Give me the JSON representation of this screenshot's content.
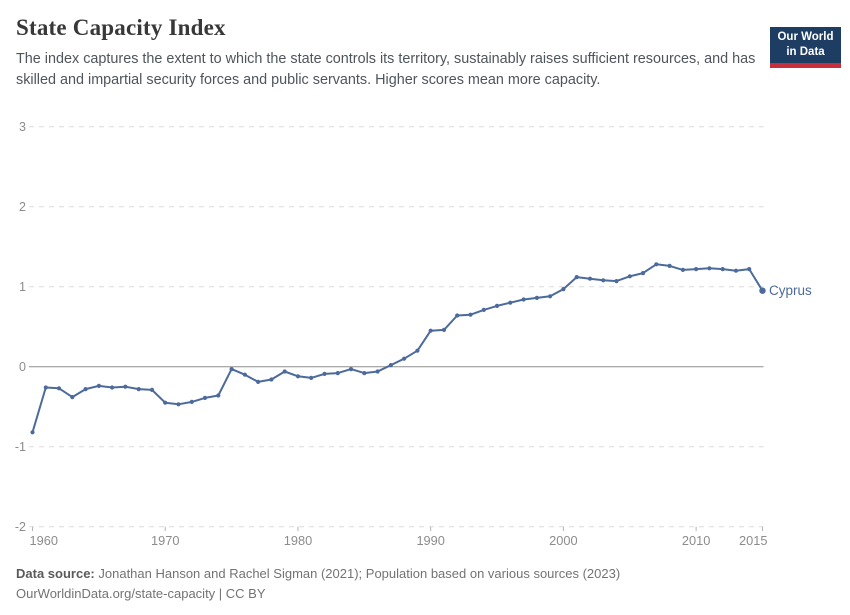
{
  "header": {
    "title": "State Capacity Index",
    "subtitle": "The index captures the extent to which the state controls its territory, sustainably raises sufficient resources, and has skilled and impartial security forces and public servants. Higher scores mean more capacity.",
    "logo_line1": "Our World",
    "logo_line2": "in Data"
  },
  "colors": {
    "series_line": "#4c6a9c",
    "logo_background": "#1d3d63",
    "logo_red_bar": "#c72f3d",
    "gridline": "#dcdcdc",
    "zero_line": "#8f8f8f",
    "axis_label": "#8c8c8c"
  },
  "chart_data": {
    "type": "line",
    "title": "State Capacity Index",
    "xlabel": "",
    "ylabel": "",
    "xlim": [
      1960,
      2015
    ],
    "ylim": [
      -2,
      3
    ],
    "x_ticks": [
      1960,
      1970,
      1980,
      1990,
      2000,
      2010,
      2015
    ],
    "y_ticks": [
      3,
      2,
      1,
      0,
      -1,
      -2
    ],
    "grid": "horizontal dashed gridlines, solid line at 0",
    "legend": "label at end of line",
    "years": [
      1960,
      1961,
      1962,
      1963,
      1964,
      1965,
      1966,
      1967,
      1968,
      1969,
      1970,
      1971,
      1972,
      1973,
      1974,
      1975,
      1976,
      1977,
      1978,
      1979,
      1980,
      1981,
      1982,
      1983,
      1984,
      1985,
      1986,
      1987,
      1988,
      1989,
      1990,
      1991,
      1992,
      1993,
      1994,
      1995,
      1996,
      1997,
      1998,
      1999,
      2000,
      2001,
      2002,
      2003,
      2004,
      2005,
      2006,
      2007,
      2008,
      2009,
      2010,
      2011,
      2012,
      2013,
      2014,
      2015
    ],
    "series": [
      {
        "name": "Cyprus",
        "color": "#4c6a9c",
        "values": [
          -0.82,
          -0.26,
          -0.27,
          -0.38,
          -0.28,
          -0.24,
          -0.26,
          -0.25,
          -0.28,
          -0.29,
          -0.45,
          -0.47,
          -0.44,
          -0.39,
          -0.36,
          -0.03,
          -0.1,
          -0.19,
          -0.16,
          -0.06,
          -0.12,
          -0.14,
          -0.09,
          -0.08,
          -0.03,
          -0.08,
          -0.06,
          0.02,
          0.1,
          0.2,
          0.45,
          0.46,
          0.64,
          0.65,
          0.71,
          0.76,
          0.8,
          0.84,
          0.86,
          0.88,
          0.97,
          1.12,
          1.1,
          1.08,
          1.07,
          1.13,
          1.17,
          1.28,
          1.26,
          1.21,
          1.22,
          1.23,
          1.22,
          1.2,
          1.22,
          0.95
        ]
      }
    ]
  },
  "footer": {
    "datasource_label": "Data source:",
    "datasource_text": "Jonathan Hanson and Rachel Sigman (2021); Population based on various sources (2023)",
    "url_line": "OurWorldinData.org/state-capacity | CC BY"
  }
}
